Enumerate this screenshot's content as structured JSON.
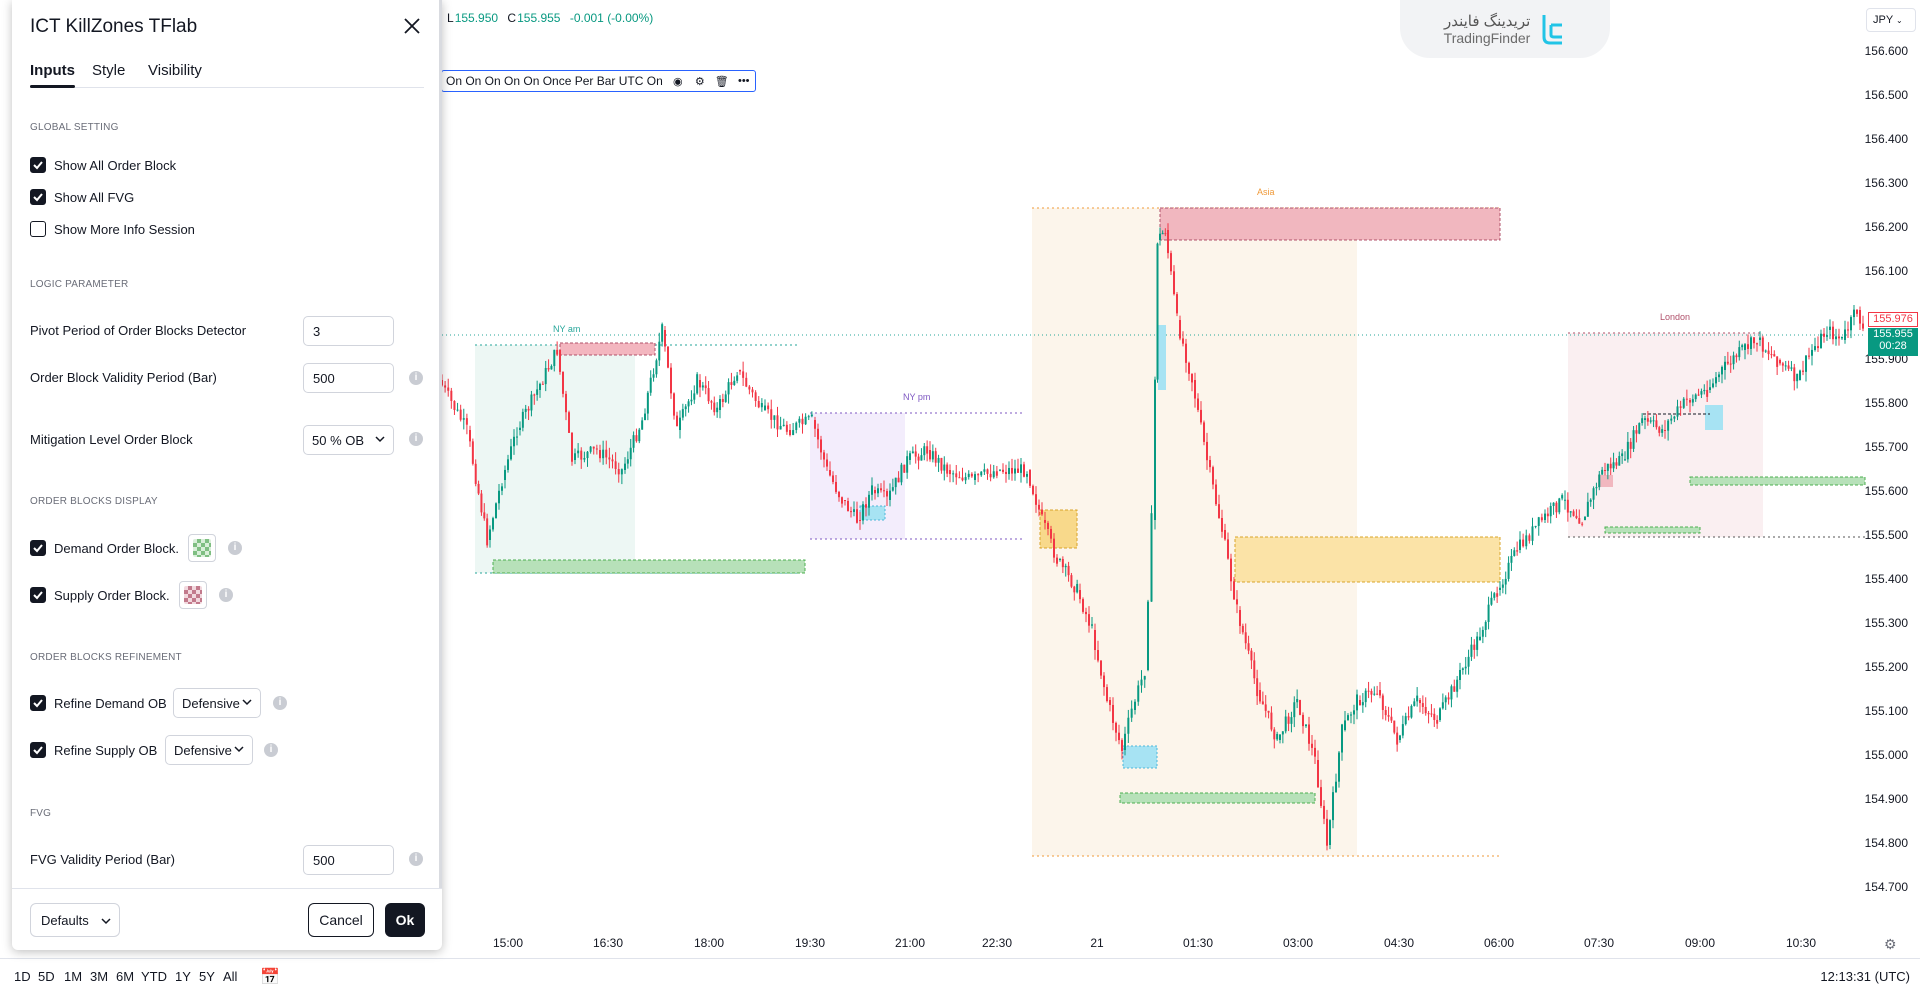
{
  "symbol_ohlc": {
    "low_label": "L",
    "low": "155.950",
    "close_label": "C",
    "close": "155.955",
    "change": "-0.001 (-0.00%)"
  },
  "legend": {
    "text": "On On On On On Once Per Bar UTC On"
  },
  "logo": {
    "fa": "تریدینگ فایندر",
    "en": "TradingFinder"
  },
  "currency": "JPY",
  "price_axis": [
    "156.600",
    "156.500",
    "156.400",
    "156.300",
    "156.200",
    "156.100",
    "155.900",
    "155.800",
    "155.700",
    "155.600",
    "155.500",
    "155.400",
    "155.300",
    "155.200",
    "155.100",
    "155.000",
    "154.900",
    "154.800",
    "154.700"
  ],
  "last_price": {
    "red": "155.976",
    "green": "155.955",
    "countdown": "00:28"
  },
  "time_axis": [
    "15:00",
    "16:30",
    "18:00",
    "19:30",
    "21:00",
    "22:30",
    "21",
    "01:30",
    "03:00",
    "04:30",
    "06:00",
    "07:30",
    "09:00",
    "10:30"
  ],
  "sessions": {
    "ny_am": "NY am",
    "ny_pm": "NY pm",
    "asia": "Asia",
    "london": "London"
  },
  "bottom": {
    "ranges": [
      "1D",
      "5D",
      "1M",
      "3M",
      "6M",
      "YTD",
      "1Y",
      "5Y",
      "All"
    ],
    "clock": "12:13:31 (UTC)"
  },
  "dialog": {
    "title": "ICT KillZones TFlab",
    "tabs": [
      "Inputs",
      "Style",
      "Visibility"
    ],
    "sections": {
      "global": "GLOBAL SETTING",
      "logic": "LOGIC PARAMETER",
      "display": "ORDER BLOCKS DISPLAY",
      "refine": "ORDER BLOCKS REFINEMENT",
      "fvg": "FVG"
    },
    "show_all_ob": {
      "label": "Show All Order Block",
      "checked": true
    },
    "show_all_fvg": {
      "label": "Show All FVG",
      "checked": true
    },
    "show_more_info": {
      "label": "Show More Info Session",
      "checked": false
    },
    "pivot_period": {
      "label": "Pivot Period of Order Blocks Detector",
      "value": "3"
    },
    "ob_validity": {
      "label": "Order Block Validity Period (Bar)",
      "value": "500"
    },
    "mitigation": {
      "label": "Mitigation Level Order Block",
      "value": "50 % OB"
    },
    "demand_ob": {
      "label": "Demand Order Block.",
      "checked": true,
      "color": "#4caf50"
    },
    "supply_ob": {
      "label": "Supply Order Block.",
      "checked": true,
      "color": "#b0506a"
    },
    "refine_demand": {
      "label": "Refine Demand OB",
      "value": "Defensive",
      "checked": true
    },
    "refine_supply": {
      "label": "Refine Supply OB",
      "value": "Defensive",
      "checked": true
    },
    "fvg_validity": {
      "label": "FVG Validity Period (Bar)",
      "value": "500"
    },
    "defaults_label": "Defaults",
    "cancel_label": "Cancel",
    "ok_label": "Ok"
  }
}
